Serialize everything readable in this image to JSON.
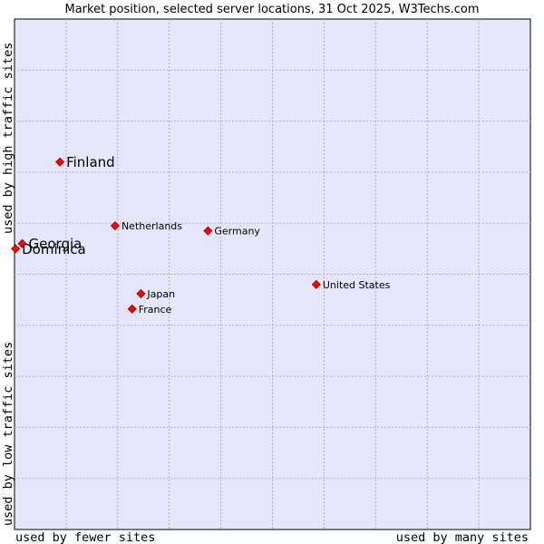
{
  "chart_data": {
    "type": "scatter",
    "title": "Market position, selected server locations, 31 Oct 2025, W3Techs.com",
    "xlabel_left": "used by fewer sites",
    "xlabel_right": "used by many sites",
    "ylabel_top": "used by high traffic sites",
    "ylabel_bottom": "used by low traffic sites",
    "xlim": [
      0,
      10
    ],
    "ylim": [
      0,
      10
    ],
    "grid": true,
    "colors": {
      "plot_bg": "#e6e6fa",
      "grid": "#b0b0d0",
      "point": "#ff0000",
      "point_stroke": "#990000",
      "text": "#000000"
    },
    "points": [
      {
        "label": "Finland",
        "x": 0.88,
        "y": 7.2,
        "emphasis": true
      },
      {
        "label": "Georgia",
        "x": 0.15,
        "y": 5.6,
        "emphasis": true
      },
      {
        "label": "Dominica",
        "x": 0.02,
        "y": 5.5,
        "emphasis": true
      },
      {
        "label": "Netherlands",
        "x": 1.95,
        "y": 5.95,
        "emphasis": false
      },
      {
        "label": "Germany",
        "x": 3.75,
        "y": 5.85,
        "emphasis": false
      },
      {
        "label": "United States",
        "x": 5.85,
        "y": 4.8,
        "emphasis": false
      },
      {
        "label": "Japan",
        "x": 2.45,
        "y": 4.62,
        "emphasis": false
      },
      {
        "label": "France",
        "x": 2.28,
        "y": 4.32,
        "emphasis": false
      }
    ]
  }
}
